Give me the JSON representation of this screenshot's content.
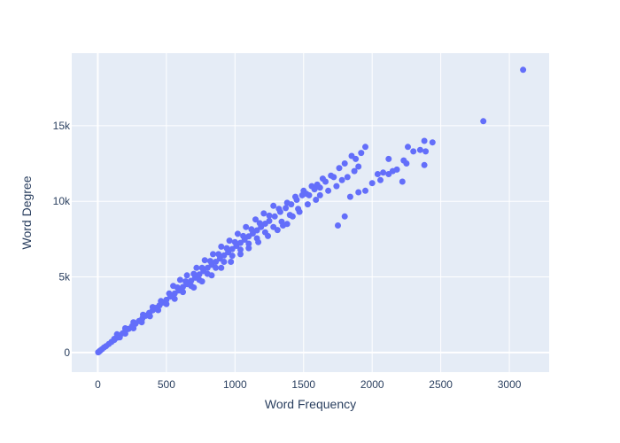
{
  "chart_data": {
    "type": "scatter",
    "title": "",
    "xlabel": "Word Frequency",
    "ylabel": "Word Degree",
    "xlim": [
      -190,
      3290
    ],
    "ylim": [
      -1300,
      19800
    ],
    "x_ticks": [
      0,
      500,
      1000,
      1500,
      2000,
      2500,
      3000
    ],
    "x_tick_labels": [
      "0",
      "500",
      "1000",
      "1500",
      "2000",
      "2500",
      "3000"
    ],
    "y_ticks": [
      0,
      5000,
      10000,
      15000
    ],
    "y_tick_labels": [
      "0",
      "5k",
      "10k",
      "15k"
    ],
    "grid": true,
    "legend": "none",
    "colors": {
      "marker": "#636efa",
      "plot_background": "#e5ecf6",
      "grid": "#ffffff",
      "text": "#2a3f5f"
    },
    "series": [
      {
        "points": [
          [
            3,
            15
          ],
          [
            10,
            60
          ],
          [
            18,
            130
          ],
          [
            30,
            210
          ],
          [
            45,
            330
          ],
          [
            60,
            420
          ],
          [
            80,
            560
          ],
          [
            100,
            700
          ],
          [
            120,
            830
          ],
          [
            140,
            980
          ],
          [
            160,
            1120
          ],
          [
            180,
            1260
          ],
          [
            200,
            1400
          ],
          [
            225,
            1560
          ],
          [
            250,
            1740
          ],
          [
            275,
            1900
          ],
          [
            300,
            2080
          ],
          [
            325,
            2260
          ],
          [
            350,
            2430
          ],
          [
            375,
            2620
          ],
          [
            400,
            2790
          ],
          [
            425,
            2950
          ],
          [
            450,
            3120
          ],
          [
            475,
            3300
          ],
          [
            500,
            3480
          ],
          [
            530,
            3700
          ],
          [
            560,
            3900
          ],
          [
            590,
            4100
          ],
          [
            620,
            4330
          ],
          [
            650,
            4520
          ],
          [
            680,
            4740
          ],
          [
            710,
            4950
          ],
          [
            740,
            5160
          ],
          [
            770,
            5380
          ],
          [
            800,
            5600
          ],
          [
            830,
            5800
          ],
          [
            860,
            6000
          ],
          [
            890,
            6210
          ],
          [
            920,
            6420
          ],
          [
            950,
            6630
          ],
          [
            980,
            6840
          ],
          [
            1010,
            7050
          ],
          [
            1040,
            7250
          ],
          [
            1070,
            7460
          ],
          [
            1100,
            7680
          ],
          [
            1130,
            7870
          ],
          [
            1160,
            8080
          ],
          [
            1190,
            8300
          ],
          [
            1220,
            8520
          ],
          [
            1250,
            8700
          ],
          [
            1290,
            9000
          ],
          [
            1330,
            9300
          ],
          [
            1370,
            9550
          ],
          [
            1410,
            9800
          ],
          [
            1450,
            10100
          ],
          [
            1490,
            10400
          ],
          [
            120,
            900
          ],
          [
            160,
            1000
          ],
          [
            200,
            1250
          ],
          [
            260,
            1600
          ],
          [
            320,
            2000
          ],
          [
            380,
            2400
          ],
          [
            440,
            2800
          ],
          [
            500,
            3200
          ],
          [
            560,
            3550
          ],
          [
            620,
            4000
          ],
          [
            680,
            4400
          ],
          [
            740,
            4800
          ],
          [
            800,
            5200
          ],
          [
            860,
            5600
          ],
          [
            920,
            6000
          ],
          [
            980,
            6400
          ],
          [
            1040,
            6800
          ],
          [
            1100,
            7200
          ],
          [
            1160,
            7550
          ],
          [
            1220,
            7950
          ],
          [
            1280,
            8300
          ],
          [
            1340,
            8650
          ],
          [
            1400,
            9100
          ],
          [
            1460,
            9500
          ],
          [
            140,
            1200
          ],
          [
            200,
            1600
          ],
          [
            260,
            2000
          ],
          [
            330,
            2500
          ],
          [
            400,
            3000
          ],
          [
            460,
            3400
          ],
          [
            520,
            3900
          ],
          [
            580,
            4300
          ],
          [
            640,
            4700
          ],
          [
            700,
            5200
          ],
          [
            760,
            5600
          ],
          [
            820,
            6050
          ],
          [
            880,
            6500
          ],
          [
            940,
            6900
          ],
          [
            1000,
            7300
          ],
          [
            1060,
            7700
          ],
          [
            1120,
            8150
          ],
          [
            1180,
            8550
          ],
          [
            1250,
            9050
          ],
          [
            1320,
            9500
          ],
          [
            1380,
            9900
          ],
          [
            1440,
            10300
          ],
          [
            1500,
            10700
          ],
          [
            550,
            4400
          ],
          [
            600,
            4800
          ],
          [
            650,
            5100
          ],
          [
            720,
            5600
          ],
          [
            780,
            6100
          ],
          [
            840,
            6500
          ],
          [
            900,
            7000
          ],
          [
            960,
            7400
          ],
          [
            1020,
            7850
          ],
          [
            1080,
            8300
          ],
          [
            1150,
            8800
          ],
          [
            1210,
            9200
          ],
          [
            1280,
            9700
          ],
          [
            700,
            4300
          ],
          [
            760,
            4700
          ],
          [
            830,
            5100
          ],
          [
            900,
            5600
          ],
          [
            970,
            6000
          ],
          [
            1040,
            6500
          ],
          [
            1100,
            6900
          ],
          [
            1170,
            7300
          ],
          [
            1240,
            7700
          ],
          [
            1310,
            8100
          ],
          [
            1380,
            8500
          ],
          [
            1520,
            10500
          ],
          [
            1560,
            11000
          ],
          [
            1600,
            11100
          ],
          [
            1640,
            11500
          ],
          [
            1700,
            11700
          ],
          [
            1760,
            12200
          ],
          [
            1800,
            12500
          ],
          [
            1850,
            13000
          ],
          [
            1880,
            12800
          ],
          [
            1920,
            13200
          ],
          [
            1950,
            13600
          ],
          [
            1540,
            10400
          ],
          [
            1580,
            10800
          ],
          [
            1620,
            10900
          ],
          [
            1660,
            11300
          ],
          [
            1720,
            11600
          ],
          [
            1350,
            8400
          ],
          [
            1420,
            9000
          ],
          [
            1470,
            9300
          ],
          [
            1530,
            9800
          ],
          [
            1590,
            10100
          ],
          [
            1620,
            10400
          ],
          [
            1680,
            10700
          ],
          [
            1740,
            11000
          ],
          [
            1780,
            11400
          ],
          [
            1820,
            11600
          ],
          [
            1870,
            12000
          ],
          [
            1900,
            12300
          ],
          [
            1750,
            8400
          ],
          [
            1800,
            9000
          ],
          [
            1840,
            10300
          ],
          [
            1900,
            10600
          ],
          [
            1950,
            10700
          ],
          [
            2000,
            11200
          ],
          [
            2040,
            11800
          ],
          [
            2080,
            11900
          ],
          [
            2120,
            11800
          ],
          [
            2150,
            12000
          ],
          [
            2180,
            12100
          ],
          [
            2220,
            11300
          ],
          [
            2230,
            12700
          ],
          [
            2250,
            12500
          ],
          [
            2260,
            13600
          ],
          [
            2300,
            13300
          ],
          [
            2350,
            13400
          ],
          [
            2380,
            12400
          ],
          [
            2380,
            14000
          ],
          [
            2390,
            13300
          ],
          [
            2440,
            13900
          ],
          [
            2120,
            12800
          ],
          [
            2060,
            11400
          ],
          [
            2810,
            15300
          ],
          [
            3100,
            18700
          ]
        ]
      }
    ]
  }
}
